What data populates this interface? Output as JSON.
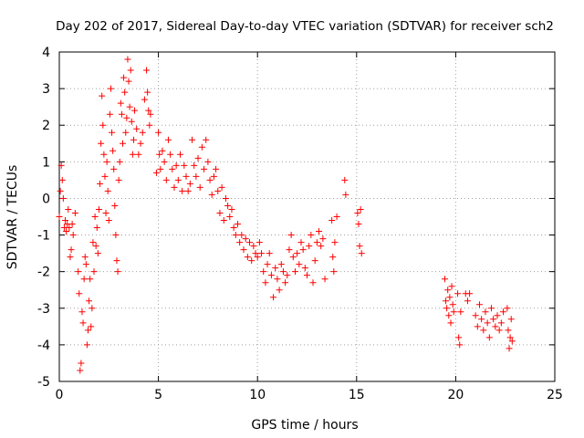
{
  "chart_data": {
    "type": "scatter",
    "title": "Day 202 of 2017, Sidereal Day-to-day VTEC variation (SDTVAR) for receiver sch2",
    "xlabel": "GPS time / hours",
    "ylabel": "SDTVAR / TECUs",
    "xlim": [
      0,
      25
    ],
    "ylim": [
      -5,
      4
    ],
    "xticks": [
      0,
      5,
      10,
      15,
      20,
      25
    ],
    "yticks": [
      -5,
      -4,
      -3,
      -2,
      -1,
      0,
      1,
      2,
      3,
      4
    ],
    "grid": true,
    "marker": "+",
    "color": "#ff0000",
    "series": [
      {
        "name": "SDTVAR",
        "points": [
          [
            0.0,
            -0.5
          ],
          [
            0.05,
            0.2
          ],
          [
            0.1,
            0.9
          ],
          [
            0.15,
            0.5
          ],
          [
            0.2,
            0.0
          ],
          [
            0.25,
            -0.8
          ],
          [
            0.3,
            -0.6
          ],
          [
            0.35,
            -0.9
          ],
          [
            0.4,
            -0.7
          ],
          [
            0.45,
            -0.3
          ],
          [
            0.5,
            -0.8
          ],
          [
            0.55,
            -1.6
          ],
          [
            0.6,
            -1.4
          ],
          [
            0.65,
            -0.7
          ],
          [
            0.7,
            -1.0
          ],
          [
            0.8,
            -0.4
          ],
          [
            0.95,
            -2.0
          ],
          [
            1.0,
            -2.6
          ],
          [
            1.05,
            -4.7
          ],
          [
            1.1,
            -4.5
          ],
          [
            1.15,
            -3.1
          ],
          [
            1.2,
            -3.4
          ],
          [
            1.25,
            -2.2
          ],
          [
            1.3,
            -1.6
          ],
          [
            1.35,
            -1.8
          ],
          [
            1.4,
            -4.0
          ],
          [
            1.45,
            -3.6
          ],
          [
            1.5,
            -2.8
          ],
          [
            1.55,
            -2.2
          ],
          [
            1.6,
            -3.5
          ],
          [
            1.65,
            -3.0
          ],
          [
            1.7,
            -1.2
          ],
          [
            1.75,
            -2.0
          ],
          [
            1.8,
            -0.5
          ],
          [
            1.85,
            -1.3
          ],
          [
            1.9,
            -0.8
          ],
          [
            1.95,
            -1.5
          ],
          [
            2.0,
            -0.3
          ],
          [
            2.05,
            0.4
          ],
          [
            2.1,
            1.5
          ],
          [
            2.15,
            2.8
          ],
          [
            2.2,
            2.0
          ],
          [
            2.25,
            1.2
          ],
          [
            2.3,
            0.6
          ],
          [
            2.35,
            -0.4
          ],
          [
            2.4,
            1.0
          ],
          [
            2.45,
            0.2
          ],
          [
            2.5,
            -0.6
          ],
          [
            2.55,
            2.3
          ],
          [
            2.6,
            3.0
          ],
          [
            2.65,
            1.8
          ],
          [
            2.7,
            1.3
          ],
          [
            2.75,
            0.8
          ],
          [
            2.8,
            -0.2
          ],
          [
            2.85,
            -1.0
          ],
          [
            2.9,
            -1.7
          ],
          [
            2.95,
            -2.0
          ],
          [
            3.0,
            0.5
          ],
          [
            3.05,
            1.0
          ],
          [
            3.1,
            2.6
          ],
          [
            3.15,
            2.3
          ],
          [
            3.2,
            1.5
          ],
          [
            3.25,
            3.3
          ],
          [
            3.3,
            2.9
          ],
          [
            3.35,
            1.8
          ],
          [
            3.4,
            2.2
          ],
          [
            3.45,
            3.8
          ],
          [
            3.5,
            3.2
          ],
          [
            3.55,
            2.5
          ],
          [
            3.6,
            3.5
          ],
          [
            3.65,
            2.1
          ],
          [
            3.7,
            1.2
          ],
          [
            3.75,
            1.6
          ],
          [
            3.8,
            2.4
          ],
          [
            3.9,
            1.9
          ],
          [
            4.0,
            1.2
          ],
          [
            4.1,
            1.5
          ],
          [
            4.2,
            1.8
          ],
          [
            4.3,
            2.7
          ],
          [
            4.4,
            3.5
          ],
          [
            4.45,
            2.9
          ],
          [
            4.5,
            2.4
          ],
          [
            4.55,
            2.0
          ],
          [
            4.6,
            2.3
          ],
          [
            4.9,
            0.7
          ],
          [
            5.0,
            1.8
          ],
          [
            5.05,
            1.2
          ],
          [
            5.1,
            0.8
          ],
          [
            5.2,
            1.3
          ],
          [
            5.3,
            1.0
          ],
          [
            5.4,
            0.5
          ],
          [
            5.5,
            1.6
          ],
          [
            5.6,
            1.2
          ],
          [
            5.7,
            0.8
          ],
          [
            5.8,
            0.3
          ],
          [
            5.9,
            0.9
          ],
          [
            6.0,
            0.5
          ],
          [
            6.1,
            1.2
          ],
          [
            6.2,
            0.2
          ],
          [
            6.3,
            0.9
          ],
          [
            6.4,
            0.6
          ],
          [
            6.5,
            0.2
          ],
          [
            6.6,
            0.4
          ],
          [
            6.7,
            1.6
          ],
          [
            6.8,
            0.9
          ],
          [
            6.9,
            0.6
          ],
          [
            7.0,
            1.1
          ],
          [
            7.1,
            0.3
          ],
          [
            7.2,
            1.4
          ],
          [
            7.3,
            0.8
          ],
          [
            7.4,
            1.6
          ],
          [
            7.5,
            1.0
          ],
          [
            7.6,
            0.5
          ],
          [
            7.7,
            0.1
          ],
          [
            7.8,
            0.6
          ],
          [
            7.9,
            0.8
          ],
          [
            8.0,
            0.2
          ],
          [
            8.1,
            -0.4
          ],
          [
            8.2,
            0.3
          ],
          [
            8.3,
            -0.6
          ],
          [
            8.4,
            0.0
          ],
          [
            8.5,
            -0.2
          ],
          [
            8.6,
            -0.5
          ],
          [
            8.7,
            -0.3
          ],
          [
            8.8,
            -0.8
          ],
          [
            8.9,
            -1.0
          ],
          [
            9.0,
            -0.7
          ],
          [
            9.1,
            -1.2
          ],
          [
            9.2,
            -1.0
          ],
          [
            9.3,
            -1.4
          ],
          [
            9.4,
            -1.1
          ],
          [
            9.5,
            -1.6
          ],
          [
            9.6,
            -1.2
          ],
          [
            9.7,
            -1.7
          ],
          [
            9.8,
            -1.3
          ],
          [
            9.9,
            -1.5
          ],
          [
            10.0,
            -1.6
          ],
          [
            10.1,
            -1.2
          ],
          [
            10.2,
            -1.5
          ],
          [
            10.3,
            -2.0
          ],
          [
            10.4,
            -2.3
          ],
          [
            10.5,
            -1.8
          ],
          [
            10.6,
            -1.5
          ],
          [
            10.7,
            -2.1
          ],
          [
            10.8,
            -2.7
          ],
          [
            10.9,
            -1.9
          ],
          [
            11.0,
            -2.2
          ],
          [
            11.1,
            -2.5
          ],
          [
            11.2,
            -1.8
          ],
          [
            11.3,
            -2.0
          ],
          [
            11.4,
            -2.3
          ],
          [
            11.5,
            -2.1
          ],
          [
            11.6,
            -1.4
          ],
          [
            11.7,
            -1.0
          ],
          [
            11.8,
            -1.6
          ],
          [
            11.9,
            -2.0
          ],
          [
            12.0,
            -1.5
          ],
          [
            12.1,
            -1.8
          ],
          [
            12.2,
            -1.2
          ],
          [
            12.3,
            -1.4
          ],
          [
            12.4,
            -1.9
          ],
          [
            12.5,
            -2.1
          ],
          [
            12.6,
            -1.3
          ],
          [
            12.7,
            -1.0
          ],
          [
            12.8,
            -2.3
          ],
          [
            12.9,
            -1.7
          ],
          [
            13.0,
            -1.2
          ],
          [
            13.1,
            -0.9
          ],
          [
            13.2,
            -1.3
          ],
          [
            13.3,
            -1.1
          ],
          [
            13.4,
            -2.2
          ],
          [
            13.75,
            -0.6
          ],
          [
            13.8,
            -1.6
          ],
          [
            13.85,
            -2.0
          ],
          [
            13.9,
            -1.2
          ],
          [
            14.0,
            -0.5
          ],
          [
            14.4,
            0.5
          ],
          [
            14.45,
            0.1
          ],
          [
            15.05,
            -0.4
          ],
          [
            15.1,
            -0.7
          ],
          [
            15.15,
            -1.3
          ],
          [
            15.2,
            -0.3
          ],
          [
            15.25,
            -1.5
          ],
          [
            19.45,
            -2.2
          ],
          [
            19.5,
            -2.8
          ],
          [
            19.55,
            -3.0
          ],
          [
            19.6,
            -2.5
          ],
          [
            19.65,
            -3.2
          ],
          [
            19.7,
            -2.7
          ],
          [
            19.75,
            -3.4
          ],
          [
            19.8,
            -2.4
          ],
          [
            19.85,
            -2.9
          ],
          [
            19.9,
            -3.1
          ],
          [
            20.1,
            -2.6
          ],
          [
            20.15,
            -3.8
          ],
          [
            20.2,
            -4.0
          ],
          [
            20.25,
            -3.1
          ],
          [
            20.5,
            -2.6
          ],
          [
            20.6,
            -2.8
          ],
          [
            20.7,
            -2.6
          ],
          [
            21.0,
            -3.2
          ],
          [
            21.1,
            -3.5
          ],
          [
            21.2,
            -2.9
          ],
          [
            21.3,
            -3.3
          ],
          [
            21.4,
            -3.6
          ],
          [
            21.5,
            -3.1
          ],
          [
            21.6,
            -3.4
          ],
          [
            21.7,
            -3.8
          ],
          [
            21.8,
            -3.0
          ],
          [
            21.9,
            -3.3
          ],
          [
            22.0,
            -3.5
          ],
          [
            22.1,
            -3.2
          ],
          [
            22.2,
            -3.6
          ],
          [
            22.3,
            -3.4
          ],
          [
            22.4,
            -3.1
          ],
          [
            22.6,
            -3.0
          ],
          [
            22.65,
            -3.6
          ],
          [
            22.7,
            -4.1
          ],
          [
            22.75,
            -3.8
          ],
          [
            22.8,
            -3.3
          ],
          [
            22.85,
            -3.9
          ]
        ]
      }
    ]
  }
}
